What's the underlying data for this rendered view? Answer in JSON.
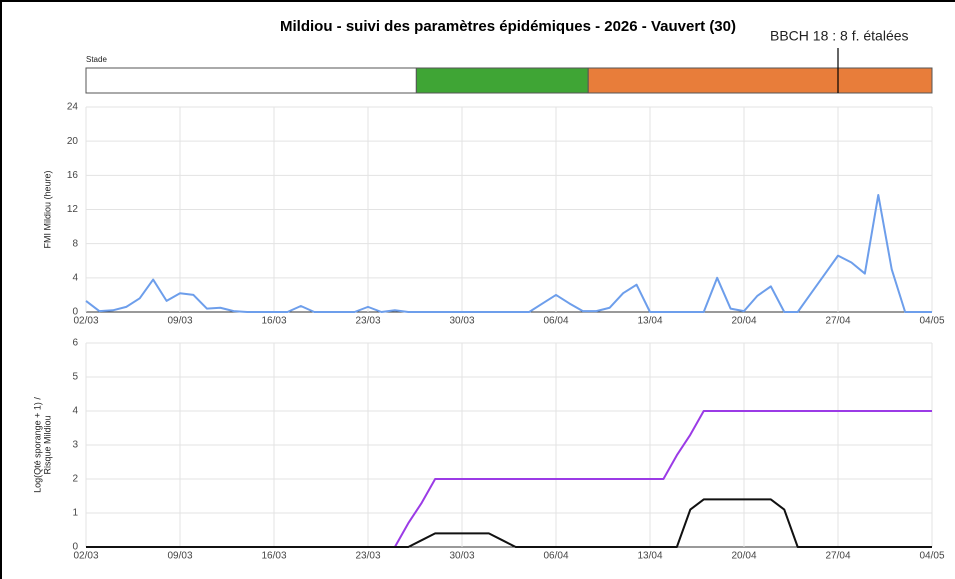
{
  "chart_data": [
    {
      "type": "stage",
      "title": "Mildiou - suivi des paramètres épidémiques - 2026 - Vauvert (30)",
      "label": "Stade",
      "xlim": [
        0,
        63
      ],
      "segments": [
        {
          "color": "#ffffff",
          "start": 0,
          "end": 24.6
        },
        {
          "color": "#3fa535",
          "start": 24.6,
          "end": 37.4
        },
        {
          "color": "#e87d3a",
          "start": 37.4,
          "end": 63
        }
      ],
      "annotation": {
        "text": "BBCH 18 : 8 f. étalées",
        "x": 56
      }
    },
    {
      "type": "line",
      "ylabel": "FMI Mildiou (heure)",
      "categories": [
        "02/03",
        null,
        null,
        null,
        null,
        null,
        null,
        "09/03",
        null,
        null,
        null,
        null,
        null,
        null,
        "16/03",
        null,
        null,
        null,
        null,
        null,
        null,
        "23/03",
        null,
        null,
        null,
        null,
        null,
        null,
        "30/03",
        null,
        null,
        null,
        null,
        null,
        null,
        "06/04",
        null,
        null,
        null,
        null,
        null,
        null,
        "13/04",
        null,
        null,
        null,
        null,
        null,
        null,
        "20/04",
        null,
        null,
        null,
        null,
        null,
        null,
        "27/04",
        null,
        null,
        null,
        null,
        null,
        null,
        "04/05"
      ],
      "ylim": [
        0,
        24
      ],
      "yticks": [
        0,
        4,
        8,
        12,
        16,
        20,
        24
      ],
      "grid": true,
      "series": [
        {
          "color": "#6d9eeb",
          "values": [
            1.3,
            0.1,
            0.2,
            0.6,
            1.6,
            3.8,
            1.3,
            2.2,
            2.0,
            0.4,
            0.5,
            0.1,
            0,
            0,
            0,
            0,
            0.7,
            0,
            0,
            0,
            0,
            0.6,
            0,
            0.2,
            0,
            0,
            0,
            0,
            0,
            0,
            0,
            0,
            0,
            0,
            1.0,
            2.0,
            1.0,
            0.1,
            0.1,
            0.5,
            2.2,
            3.2,
            0,
            0,
            0,
            0,
            0,
            4.0,
            0.4,
            0.1,
            1.9,
            3.0,
            0,
            0,
            2.2,
            4.4,
            6.6,
            5.8,
            4.5,
            13.7,
            5.0,
            0,
            0,
            0
          ]
        }
      ]
    },
    {
      "type": "line",
      "ylabel": [
        "Log(Qté sporange + 1) /",
        "Risque Mildiou"
      ],
      "categories": [
        "02/03",
        null,
        null,
        null,
        null,
        null,
        null,
        "09/03",
        null,
        null,
        null,
        null,
        null,
        null,
        "16/03",
        null,
        null,
        null,
        null,
        null,
        null,
        "23/03",
        null,
        null,
        null,
        null,
        null,
        null,
        "30/03",
        null,
        null,
        null,
        null,
        null,
        null,
        "06/04",
        null,
        null,
        null,
        null,
        null,
        null,
        "13/04",
        null,
        null,
        null,
        null,
        null,
        null,
        "20/04",
        null,
        null,
        null,
        null,
        null,
        null,
        "27/04",
        null,
        null,
        null,
        null,
        null,
        null,
        "04/05"
      ],
      "ylim": [
        0,
        6
      ],
      "yticks": [
        0,
        1,
        2,
        3,
        4,
        5,
        6
      ],
      "grid": true,
      "series": [
        {
          "color": "#9b3be6",
          "values": [
            0,
            0,
            0,
            0,
            0,
            0,
            0,
            0,
            0,
            0,
            0,
            0,
            0,
            0,
            0,
            0,
            0,
            0,
            0,
            0,
            0,
            0,
            0,
            0,
            0.7,
            1.3,
            2,
            2,
            2,
            2,
            2,
            2,
            2,
            2,
            2,
            2,
            2,
            2,
            2,
            2,
            2,
            2,
            2,
            2,
            2.7,
            3.3,
            4,
            4,
            4,
            4,
            4,
            4,
            4,
            4,
            4,
            4,
            4,
            4,
            4,
            4,
            4,
            4,
            4,
            4
          ]
        },
        {
          "color": "#111111",
          "values": [
            0,
            0,
            0,
            0,
            0,
            0,
            0,
            0,
            0,
            0,
            0,
            0,
            0,
            0,
            0,
            0,
            0,
            0,
            0,
            0,
            0,
            0,
            0,
            0,
            0,
            0.2,
            0.4,
            0.4,
            0.4,
            0.4,
            0.4,
            0.2,
            0,
            0,
            0,
            0,
            0,
            0,
            0,
            0,
            0,
            0,
            0,
            0,
            0,
            1.1,
            1.4,
            1.4,
            1.4,
            1.4,
            1.4,
            1.4,
            1.1,
            0,
            0,
            0,
            0,
            0,
            0,
            0,
            0,
            0,
            0,
            0
          ]
        }
      ]
    }
  ]
}
